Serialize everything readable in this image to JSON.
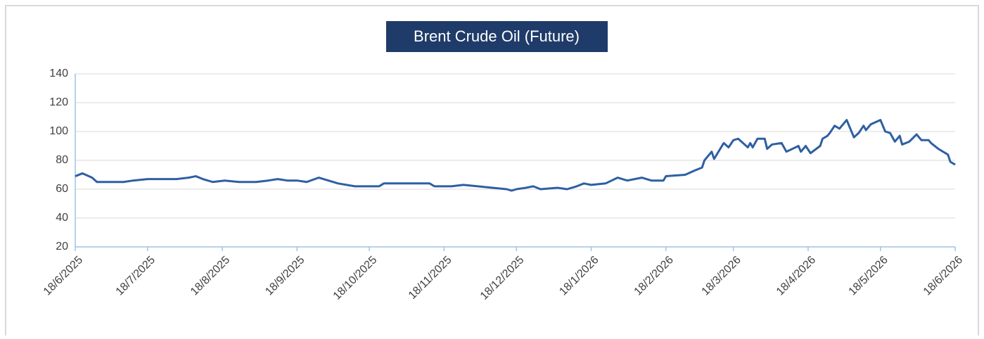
{
  "chart_data": {
    "type": "line",
    "title": "Brent Crude Oil (Future)",
    "x": [
      "2025-06-18",
      "2025-06-21",
      "2025-06-25",
      "2025-06-27",
      "2025-07-03",
      "2025-07-08",
      "2025-07-12",
      "2025-07-18",
      "2025-07-24",
      "2025-07-30",
      "2025-08-04",
      "2025-08-07",
      "2025-08-10",
      "2025-08-14",
      "2025-08-19",
      "2025-08-25",
      "2025-09-01",
      "2025-09-06",
      "2025-09-10",
      "2025-09-14",
      "2025-09-18",
      "2025-09-22",
      "2025-09-27",
      "2025-10-01",
      "2025-10-05",
      "2025-10-12",
      "2025-10-22",
      "2025-10-24",
      "2025-11-05",
      "2025-11-12",
      "2025-11-14",
      "2025-11-21",
      "2025-11-26",
      "2025-12-02",
      "2025-12-08",
      "2025-12-14",
      "2025-12-16",
      "2025-12-18",
      "2025-12-22",
      "2025-12-25",
      "2025-12-28",
      "2026-01-04",
      "2026-01-08",
      "2026-01-12",
      "2026-01-15",
      "2026-01-18",
      "2026-01-24",
      "2026-01-29",
      "2026-02-02",
      "2026-02-08",
      "2026-02-12",
      "2026-02-17",
      "2026-02-18",
      "2026-02-26",
      "2026-03-02",
      "2026-03-05",
      "2026-03-06",
      "2026-03-09",
      "2026-03-10",
      "2026-03-14",
      "2026-03-16",
      "2026-03-18",
      "2026-03-20",
      "2026-03-24",
      "2026-03-25",
      "2026-03-26",
      "2026-03-28",
      "2026-03-31",
      "2026-04-01",
      "2026-04-03",
      "2026-04-07",
      "2026-04-09",
      "2026-04-14",
      "2026-04-15",
      "2026-04-17",
      "2026-04-19",
      "2026-04-23",
      "2026-04-24",
      "2026-04-26",
      "2026-04-27",
      "2026-04-29",
      "2026-05-01",
      "2026-05-04",
      "2026-05-05",
      "2026-05-07",
      "2026-05-09",
      "2026-05-11",
      "2026-05-12",
      "2026-05-14",
      "2026-05-18",
      "2026-05-20",
      "2026-05-22",
      "2026-05-24",
      "2026-05-26",
      "2026-05-27",
      "2026-05-30",
      "2026-06-02",
      "2026-06-04",
      "2026-06-07",
      "2026-06-08",
      "2026-06-11",
      "2026-06-15",
      "2026-06-16",
      "2026-06-18"
    ],
    "series": [
      {
        "name": "Brent Crude Oil (Future)",
        "color": "#2e5fa3",
        "values": [
          69,
          71,
          68,
          65,
          65,
          65,
          66,
          67,
          67,
          67,
          68,
          69,
          67,
          65,
          66,
          65,
          65,
          66,
          67,
          66,
          66,
          65,
          68,
          66,
          64,
          62,
          62,
          64,
          64,
          64,
          62,
          62,
          63,
          62,
          61,
          60,
          59,
          60,
          61,
          62,
          60,
          61,
          60,
          62,
          64,
          63,
          64,
          68,
          66,
          68,
          66,
          66,
          69,
          70,
          73,
          75,
          80,
          86,
          81,
          92,
          89,
          94,
          95,
          89,
          92,
          89,
          95,
          95,
          88,
          91,
          92,
          86,
          90,
          86,
          90,
          85,
          90,
          95,
          97,
          99,
          104,
          102,
          108,
          104,
          96,
          99,
          104,
          101,
          105,
          108,
          100,
          99,
          93,
          97,
          91,
          93,
          98,
          94,
          94,
          92,
          88,
          84,
          79,
          77
        ]
      }
    ],
    "xlim": [
      "2025-06-18",
      "2026-06-18"
    ],
    "xticks": [
      {
        "value": "2025-06-18",
        "label": "18/6/2025"
      },
      {
        "value": "2025-07-18",
        "label": "18/7/2025"
      },
      {
        "value": "2025-08-18",
        "label": "18/8/2025"
      },
      {
        "value": "2025-09-18",
        "label": "18/9/2025"
      },
      {
        "value": "2025-10-18",
        "label": "18/10/2025"
      },
      {
        "value": "2025-11-18",
        "label": "18/11/2025"
      },
      {
        "value": "2025-12-18",
        "label": "18/12/2025"
      },
      {
        "value": "2026-01-18",
        "label": "18/1/2026"
      },
      {
        "value": "2026-02-18",
        "label": "18/2/2026"
      },
      {
        "value": "2026-03-18",
        "label": "18/3/2026"
      },
      {
        "value": "2026-04-18",
        "label": "18/4/2026"
      },
      {
        "value": "2026-05-18",
        "label": "18/5/2026"
      },
      {
        "value": "2026-06-18",
        "label": "18/6/2026"
      }
    ],
    "ylim": [
      20,
      140
    ],
    "yticks": [
      20,
      40,
      60,
      80,
      100,
      120,
      140
    ],
    "grid": true
  }
}
